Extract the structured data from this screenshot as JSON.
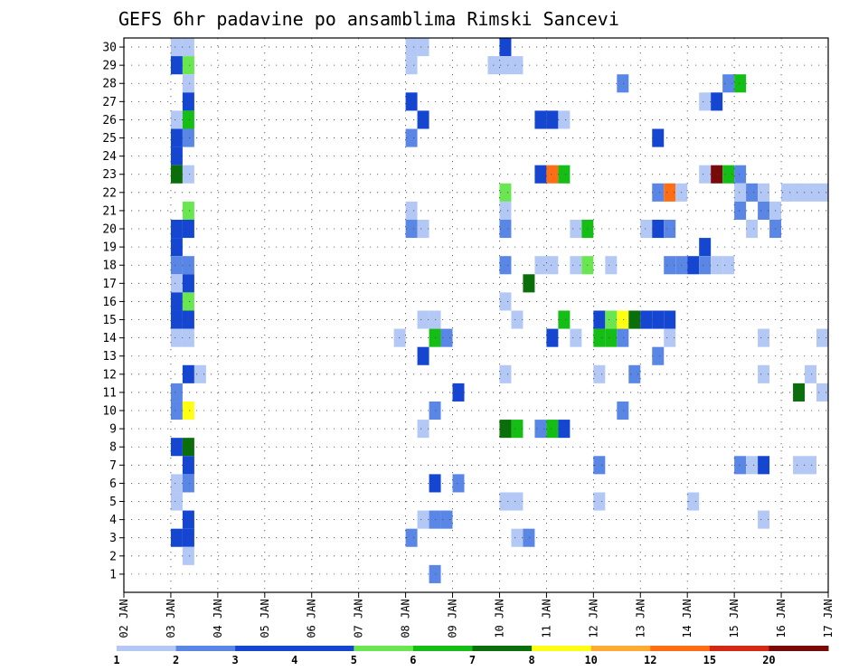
{
  "chart_data": {
    "type": "heatmap",
    "title": "GEFS 6hr padavine po ansamblima Rimski Sancevi",
    "xlabel": "",
    "ylabel": "",
    "y_ticks": [
      "1",
      "2",
      "3",
      "4",
      "5",
      "6",
      "7",
      "8",
      "9",
      "10",
      "11",
      "12",
      "13",
      "14",
      "15",
      "16",
      "17",
      "18",
      "19",
      "20",
      "21",
      "22",
      "23",
      "24",
      "25",
      "26",
      "27",
      "28",
      "29",
      "30"
    ],
    "x_ticks": [
      "02 JAN",
      "03 JAN",
      "04 JAN",
      "05 JAN",
      "06 JAN",
      "07 JAN",
      "08 JAN",
      "09 JAN",
      "10 JAN",
      "11 JAN",
      "12 JAN",
      "13 JAN",
      "14 JAN",
      "15 JAN",
      "16 JAN",
      "17 JAN"
    ],
    "x_step_hours": 6,
    "xlim": [
      0,
      60
    ],
    "ylim": [
      0,
      30
    ],
    "grid": true,
    "colorbar": {
      "position": "bottom",
      "labels": [
        "1",
        "2",
        "3",
        "4",
        "5",
        "6",
        "7",
        "8",
        "10",
        "12",
        "15",
        "20"
      ],
      "colors": [
        "#b4c8f5",
        "#5a87e6",
        "#1446d2",
        "#1446d2",
        "#69e650",
        "#14be14",
        "#0a6e0a",
        "#ffff14",
        "#ffaa32",
        "#ff6e14",
        "#d22814",
        "#780a0a"
      ]
    },
    "cells": [
      {
        "t": 4,
        "m": 30,
        "v": 1.5
      },
      {
        "t": 5,
        "m": 30,
        "v": 1.5
      },
      {
        "t": 24,
        "m": 30,
        "v": 1.5
      },
      {
        "t": 25,
        "m": 30,
        "v": 1.5
      },
      {
        "t": 32,
        "m": 30,
        "v": 3.5
      },
      {
        "t": 4,
        "m": 29,
        "v": 3.5
      },
      {
        "t": 5,
        "m": 29,
        "v": 5.5
      },
      {
        "t": 24,
        "m": 29,
        "v": 1.5
      },
      {
        "t": 31,
        "m": 29,
        "v": 1.5
      },
      {
        "t": 32,
        "m": 29,
        "v": 1.5
      },
      {
        "t": 33,
        "m": 29,
        "v": 1.5
      },
      {
        "t": 5,
        "m": 28,
        "v": 1.5
      },
      {
        "t": 42,
        "m": 28,
        "v": 2.5
      },
      {
        "t": 51,
        "m": 28,
        "v": 2.5
      },
      {
        "t": 52,
        "m": 28,
        "v": 6.5
      },
      {
        "t": 5,
        "m": 27,
        "v": 4.5
      },
      {
        "t": 24,
        "m": 27,
        "v": 4.5
      },
      {
        "t": 49,
        "m": 27,
        "v": 1.5
      },
      {
        "t": 50,
        "m": 27,
        "v": 3.5
      },
      {
        "t": 4,
        "m": 26,
        "v": 1.5
      },
      {
        "t": 5,
        "m": 26,
        "v": 6.5
      },
      {
        "t": 25,
        "m": 26,
        "v": 3.5
      },
      {
        "t": 35,
        "m": 26,
        "v": 3.5
      },
      {
        "t": 36,
        "m": 26,
        "v": 3.5
      },
      {
        "t": 37,
        "m": 26,
        "v": 1.5
      },
      {
        "t": 4,
        "m": 25,
        "v": 4.5
      },
      {
        "t": 5,
        "m": 25,
        "v": 2.5
      },
      {
        "t": 24,
        "m": 25,
        "v": 2.5
      },
      {
        "t": 45,
        "m": 25,
        "v": 3.5
      },
      {
        "t": 4,
        "m": 24,
        "v": 3.5
      },
      {
        "t": 4,
        "m": 23,
        "v": 7.5
      },
      {
        "t": 5,
        "m": 23,
        "v": 1.5
      },
      {
        "t": 35,
        "m": 23,
        "v": 4.5
      },
      {
        "t": 36,
        "m": 23,
        "v": 14
      },
      {
        "t": 37,
        "m": 23,
        "v": 6.5
      },
      {
        "t": 49,
        "m": 23,
        "v": 1.5
      },
      {
        "t": 50,
        "m": 23,
        "v": 22
      },
      {
        "t": 51,
        "m": 23,
        "v": 6.5
      },
      {
        "t": 52,
        "m": 23,
        "v": 2.5
      },
      {
        "t": 32,
        "m": 22,
        "v": 5.5
      },
      {
        "t": 45,
        "m": 22,
        "v": 2.5
      },
      {
        "t": 46,
        "m": 22,
        "v": 14
      },
      {
        "t": 47,
        "m": 22,
        "v": 1.5
      },
      {
        "t": 52,
        "m": 22,
        "v": 1.5
      },
      {
        "t": 53,
        "m": 22,
        "v": 2.5
      },
      {
        "t": 54,
        "m": 22,
        "v": 1.5
      },
      {
        "t": 56,
        "m": 22,
        "v": 1.5
      },
      {
        "t": 57,
        "m": 22,
        "v": 1.5
      },
      {
        "t": 58,
        "m": 22,
        "v": 1.5
      },
      {
        "t": 59,
        "m": 22,
        "v": 1.5
      },
      {
        "t": 5,
        "m": 21,
        "v": 5.5
      },
      {
        "t": 24,
        "m": 21,
        "v": 1.5
      },
      {
        "t": 32,
        "m": 21,
        "v": 1.5
      },
      {
        "t": 52,
        "m": 21,
        "v": 2.5
      },
      {
        "t": 54,
        "m": 21,
        "v": 2.5
      },
      {
        "t": 55,
        "m": 21,
        "v": 1.5
      },
      {
        "t": 4,
        "m": 20,
        "v": 4.5
      },
      {
        "t": 5,
        "m": 20,
        "v": 4.5
      },
      {
        "t": 24,
        "m": 20,
        "v": 2.5
      },
      {
        "t": 25,
        "m": 20,
        "v": 1.5
      },
      {
        "t": 32,
        "m": 20,
        "v": 2.5
      },
      {
        "t": 38,
        "m": 20,
        "v": 1.5
      },
      {
        "t": 39,
        "m": 20,
        "v": 6.5
      },
      {
        "t": 44,
        "m": 20,
        "v": 1.5
      },
      {
        "t": 45,
        "m": 20,
        "v": 3.5
      },
      {
        "t": 46,
        "m": 20,
        "v": 2.5
      },
      {
        "t": 53,
        "m": 20,
        "v": 1.5
      },
      {
        "t": 55,
        "m": 20,
        "v": 2.5
      },
      {
        "t": 4,
        "m": 19,
        "v": 3.5
      },
      {
        "t": 49,
        "m": 19,
        "v": 3.5
      },
      {
        "t": 4,
        "m": 18,
        "v": 2.5
      },
      {
        "t": 5,
        "m": 18,
        "v": 2.5
      },
      {
        "t": 32,
        "m": 18,
        "v": 2.5
      },
      {
        "t": 35,
        "m": 18,
        "v": 1.5
      },
      {
        "t": 36,
        "m": 18,
        "v": 1.5
      },
      {
        "t": 38,
        "m": 18,
        "v": 1.5
      },
      {
        "t": 39,
        "m": 18,
        "v": 5.5
      },
      {
        "t": 41,
        "m": 18,
        "v": 1.5
      },
      {
        "t": 46,
        "m": 18,
        "v": 2.5
      },
      {
        "t": 47,
        "m": 18,
        "v": 2.5
      },
      {
        "t": 48,
        "m": 18,
        "v": 4.5
      },
      {
        "t": 49,
        "m": 18,
        "v": 2.5
      },
      {
        "t": 50,
        "m": 18,
        "v": 1.5
      },
      {
        "t": 51,
        "m": 18,
        "v": 1.5
      },
      {
        "t": 4,
        "m": 17,
        "v": 1.5
      },
      {
        "t": 5,
        "m": 17,
        "v": 4.5
      },
      {
        "t": 34,
        "m": 17,
        "v": 7.5
      },
      {
        "t": 4,
        "m": 16,
        "v": 3.5
      },
      {
        "t": 5,
        "m": 16,
        "v": 5.5
      },
      {
        "t": 32,
        "m": 16,
        "v": 1.5
      },
      {
        "t": 4,
        "m": 15,
        "v": 4.5
      },
      {
        "t": 5,
        "m": 15,
        "v": 4.5
      },
      {
        "t": 25,
        "m": 15,
        "v": 1.5
      },
      {
        "t": 26,
        "m": 15,
        "v": 1.5
      },
      {
        "t": 33,
        "m": 15,
        "v": 1.5
      },
      {
        "t": 37,
        "m": 15,
        "v": 6.5
      },
      {
        "t": 40,
        "m": 15,
        "v": 3.5
      },
      {
        "t": 41,
        "m": 15,
        "v": 5.5
      },
      {
        "t": 42,
        "m": 15,
        "v": 9
      },
      {
        "t": 43,
        "m": 15,
        "v": 7.5
      },
      {
        "t": 44,
        "m": 15,
        "v": 4.5
      },
      {
        "t": 45,
        "m": 15,
        "v": 3.5
      },
      {
        "t": 46,
        "m": 15,
        "v": 3.5
      },
      {
        "t": 4,
        "m": 14,
        "v": 1.5
      },
      {
        "t": 5,
        "m": 14,
        "v": 1.5
      },
      {
        "t": 23,
        "m": 14,
        "v": 1.5
      },
      {
        "t": 26,
        "m": 14,
        "v": 6.5
      },
      {
        "t": 27,
        "m": 14,
        "v": 2.5
      },
      {
        "t": 36,
        "m": 14,
        "v": 3.5
      },
      {
        "t": 38,
        "m": 14,
        "v": 1.5
      },
      {
        "t": 40,
        "m": 14,
        "v": 6.5
      },
      {
        "t": 41,
        "m": 14,
        "v": 6.5
      },
      {
        "t": 42,
        "m": 14,
        "v": 2.5
      },
      {
        "t": 46,
        "m": 14,
        "v": 1.5
      },
      {
        "t": 54,
        "m": 14,
        "v": 1.5
      },
      {
        "t": 59,
        "m": 14,
        "v": 1.5
      },
      {
        "t": 25,
        "m": 13,
        "v": 3.5
      },
      {
        "t": 45,
        "m": 13,
        "v": 2.5
      },
      {
        "t": 5,
        "m": 12,
        "v": 3.5
      },
      {
        "t": 6,
        "m": 12,
        "v": 1.5
      },
      {
        "t": 32,
        "m": 12,
        "v": 1.5
      },
      {
        "t": 40,
        "m": 12,
        "v": 1.5
      },
      {
        "t": 43,
        "m": 12,
        "v": 2.5
      },
      {
        "t": 54,
        "m": 12,
        "v": 1.5
      },
      {
        "t": 58,
        "m": 12,
        "v": 1.5
      },
      {
        "t": 4,
        "m": 11,
        "v": 2.5
      },
      {
        "t": 28,
        "m": 11,
        "v": 3.5
      },
      {
        "t": 57,
        "m": 11,
        "v": 7.5
      },
      {
        "t": 59,
        "m": 11,
        "v": 1.5
      },
      {
        "t": 4,
        "m": 10,
        "v": 2.5
      },
      {
        "t": 5,
        "m": 10,
        "v": 9
      },
      {
        "t": 26,
        "m": 10,
        "v": 2.5
      },
      {
        "t": 42,
        "m": 10,
        "v": 2.5
      },
      {
        "t": 25,
        "m": 9,
        "v": 1.5
      },
      {
        "t": 32,
        "m": 9,
        "v": 7.5
      },
      {
        "t": 33,
        "m": 9,
        "v": 6.5
      },
      {
        "t": 35,
        "m": 9,
        "v": 2.5
      },
      {
        "t": 36,
        "m": 9,
        "v": 6.5
      },
      {
        "t": 37,
        "m": 9,
        "v": 3.5
      },
      {
        "t": 4,
        "m": 8,
        "v": 4.5
      },
      {
        "t": 5,
        "m": 8,
        "v": 7.5
      },
      {
        "t": 5,
        "m": 7,
        "v": 3.5
      },
      {
        "t": 40,
        "m": 7,
        "v": 2.5
      },
      {
        "t": 52,
        "m": 7,
        "v": 2.5
      },
      {
        "t": 53,
        "m": 7,
        "v": 1.5
      },
      {
        "t": 54,
        "m": 7,
        "v": 4.5
      },
      {
        "t": 57,
        "m": 7,
        "v": 1.5
      },
      {
        "t": 58,
        "m": 7,
        "v": 1.5
      },
      {
        "t": 4,
        "m": 6,
        "v": 1.5
      },
      {
        "t": 5,
        "m": 6,
        "v": 2.5
      },
      {
        "t": 26,
        "m": 6,
        "v": 3.5
      },
      {
        "t": 28,
        "m": 6,
        "v": 2.5
      },
      {
        "t": 4,
        "m": 5,
        "v": 1.5
      },
      {
        "t": 32,
        "m": 5,
        "v": 1.5
      },
      {
        "t": 33,
        "m": 5,
        "v": 1.5
      },
      {
        "t": 40,
        "m": 5,
        "v": 1.5
      },
      {
        "t": 48,
        "m": 5,
        "v": 1.5
      },
      {
        "t": 5,
        "m": 4,
        "v": 3.5
      },
      {
        "t": 25,
        "m": 4,
        "v": 1.5
      },
      {
        "t": 26,
        "m": 4,
        "v": 2.5
      },
      {
        "t": 27,
        "m": 4,
        "v": 2.5
      },
      {
        "t": 54,
        "m": 4,
        "v": 1.5
      },
      {
        "t": 4,
        "m": 3,
        "v": 3.5
      },
      {
        "t": 5,
        "m": 3,
        "v": 4.5
      },
      {
        "t": 24,
        "m": 3,
        "v": 2.5
      },
      {
        "t": 33,
        "m": 3,
        "v": 1.5
      },
      {
        "t": 34,
        "m": 3,
        "v": 2.5
      },
      {
        "t": 5,
        "m": 2,
        "v": 1.5
      },
      {
        "t": 26,
        "m": 1,
        "v": 2.5
      }
    ]
  }
}
